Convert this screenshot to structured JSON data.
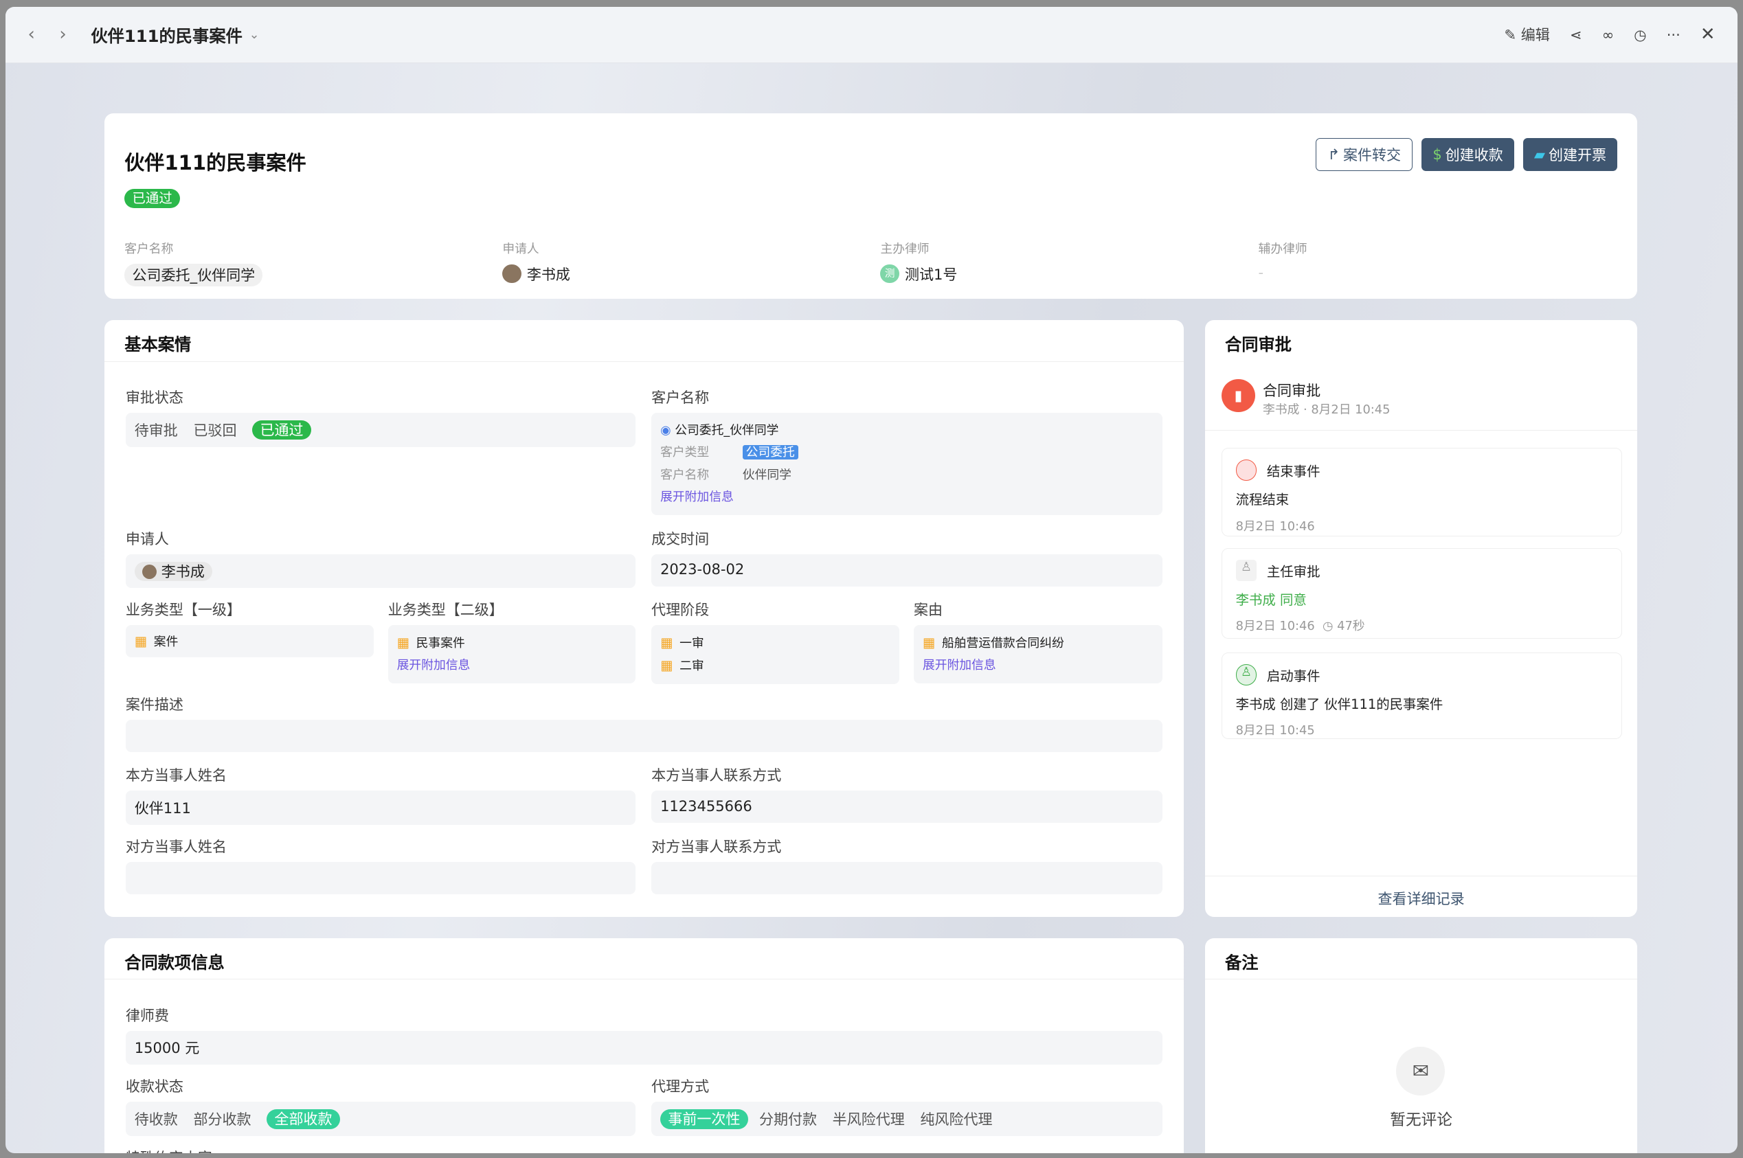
{
  "window": {
    "title": "伙伴111的民事案件",
    "edit": "编辑"
  },
  "header": {
    "title": "伙伴111的民事案件",
    "status": "已通过",
    "buttons": [
      "案件转交",
      "创建收款",
      "创建开票"
    ],
    "fields": [
      {
        "label": "客户名称",
        "value": "公司委托_伙伴同学"
      },
      {
        "label": "申请人",
        "value": "李书成"
      },
      {
        "label": "主办律师",
        "value": "测试1号",
        "avatar": "测"
      },
      {
        "label": "辅办律师",
        "value": "-"
      }
    ]
  },
  "basic": {
    "title": "基本案情",
    "approval": {
      "label": "审批状态",
      "options": [
        "待审批",
        "已驳回",
        "已通过"
      ],
      "selected": "已通过"
    },
    "customer": {
      "label": "客户名称",
      "name": "公司委托_伙伴同学",
      "type_label": "客户类型",
      "type": "公司委托",
      "name_label": "客户名称",
      "name_value": "伙伴同学",
      "expand": "展开附加信息"
    },
    "applicant": {
      "label": "申请人",
      "value": "李书成"
    },
    "deal_time": {
      "label": "成交时间",
      "value": "2023-08-02"
    },
    "biz1": {
      "label": "业务类型【一级】",
      "value": "案件"
    },
    "biz2": {
      "label": "业务类型【二级】",
      "value": "民事案件",
      "expand": "展开附加信息"
    },
    "stage": {
      "label": "代理阶段",
      "values": [
        "一审",
        "二审"
      ]
    },
    "cause": {
      "label": "案由",
      "value": "船舶营运借款合同纠纷",
      "expand": "展开附加信息"
    },
    "desc": {
      "label": "案件描述",
      "value": ""
    },
    "own_name": {
      "label": "本方当事人姓名",
      "value": "伙伴111"
    },
    "own_contact": {
      "label": "本方当事人联系方式",
      "value": "1123455666"
    },
    "opp_name": {
      "label": "对方当事人姓名",
      "value": ""
    },
    "opp_contact": {
      "label": "对方当事人联系方式",
      "value": ""
    }
  },
  "approval_panel": {
    "title": "合同审批",
    "head_title": "合同审批",
    "head_sub": "李书成 · 8月2日 10:45",
    "events": [
      {
        "title": "结束事件",
        "body": "流程结束",
        "time": "8月2日 10:46"
      },
      {
        "title": "主任审批",
        "body": "李书成 同意",
        "time": "8月2日 10:46",
        "duration": "47秒"
      },
      {
        "title": "启动事件",
        "body": "李书成 创建了 伙伴111的民事案件",
        "time": "8月2日 10:45"
      }
    ],
    "more": "查看详细记录"
  },
  "payment": {
    "title": "合同款项信息",
    "fee": {
      "label": "律师费",
      "value": "15000 元"
    },
    "status": {
      "label": "收款状态",
      "options": [
        "待收款",
        "部分收款",
        "全部收款"
      ],
      "selected": "全部收款"
    },
    "mode": {
      "label": "代理方式",
      "options": [
        "事前一次性",
        "分期付款",
        "半风险代理",
        "纯风险代理"
      ],
      "selected": "事前一次性"
    },
    "special": {
      "label": "特殊约定内容"
    }
  },
  "notes": {
    "title": "备注",
    "empty": "暂无评论"
  },
  "colors": {
    "accent": "#3f5670",
    "success": "#2bb84a",
    "teal": "#34d19a",
    "link": "#6b55e0"
  }
}
